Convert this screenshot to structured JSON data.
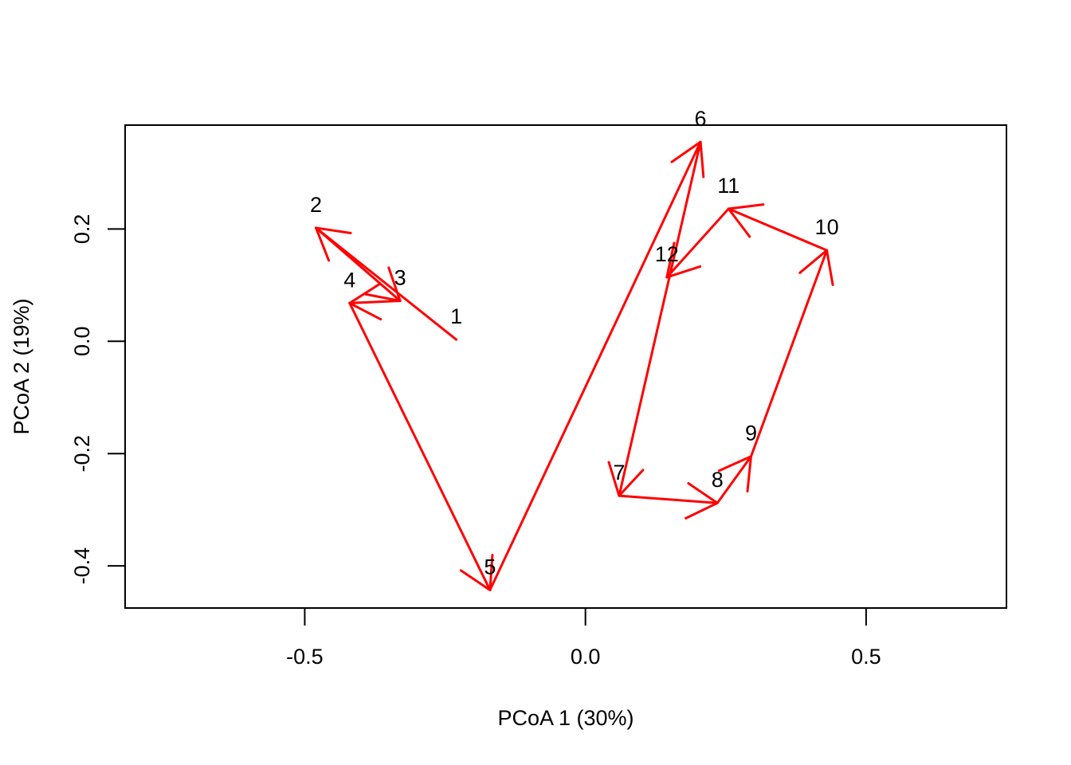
{
  "chart_data": {
    "type": "scatter",
    "title": "",
    "xlabel": "PCoA 1 (30%)",
    "ylabel": "PCoA 2 (19%)",
    "xlim": [
      -0.82,
      0.75
    ],
    "ylim": [
      -0.475,
      0.385
    ],
    "x_ticks": [
      -0.5,
      0.0,
      0.5
    ],
    "x_tick_labels": [
      "-0.5",
      "0.0",
      "0.5"
    ],
    "y_ticks": [
      -0.4,
      -0.2,
      0.0,
      0.2
    ],
    "y_tick_labels": [
      "-0.4",
      "-0.2",
      "0.0",
      "0.2"
    ],
    "grid": false,
    "arrow_color": "#ff0000",
    "points": [
      {
        "label": "1",
        "x": -0.23,
        "y": 0.003
      },
      {
        "label": "2",
        "x": -0.48,
        "y": 0.202
      },
      {
        "label": "3",
        "x": -0.33,
        "y": 0.072
      },
      {
        "label": "4",
        "x": -0.42,
        "y": 0.068
      },
      {
        "label": "5",
        "x": -0.17,
        "y": -0.443
      },
      {
        "label": "6",
        "x": 0.205,
        "y": 0.355
      },
      {
        "label": "7",
        "x": 0.06,
        "y": -0.275
      },
      {
        "label": "8",
        "x": 0.235,
        "y": -0.288
      },
      {
        "label": "9",
        "x": 0.295,
        "y": -0.205
      },
      {
        "label": "10",
        "x": 0.43,
        "y": 0.162
      },
      {
        "label": "11",
        "x": 0.255,
        "y": 0.236
      },
      {
        "label": "12",
        "x": 0.145,
        "y": 0.114
      }
    ]
  }
}
